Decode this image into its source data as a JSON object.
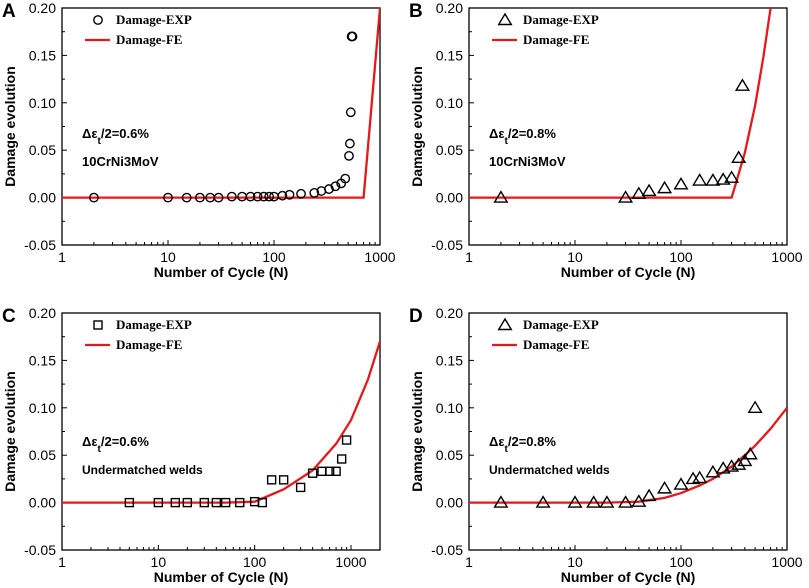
{
  "colors": {
    "fe_line": "#e31a1c",
    "markers": "#000000",
    "axis": "#000000"
  },
  "chart_data": [
    {
      "type": "scatter",
      "panel": "A",
      "title": "",
      "xlabel": "Number of Cycle (N)",
      "ylabel": "Damage evolution",
      "xscale": "log",
      "xlim": [
        1,
        1000
      ],
      "ylim": [
        -0.05,
        0.2
      ],
      "xticks": [
        1,
        10,
        100,
        1000
      ],
      "xtick_labels": [
        "1",
        "10",
        "100",
        "1000"
      ],
      "yticks": [
        -0.05,
        0,
        0.05,
        0.1,
        0.15,
        0.2
      ],
      "ytick_labels": [
        "-0.05",
        "0.00",
        "0.05",
        "0.10",
        "0.15",
        "0.20"
      ],
      "annotation": {
        "strain": "Δεt/2=0.6%",
        "material": "10CrNi3MoV"
      },
      "series": [
        {
          "name": "Damage-EXP",
          "marker": "circle",
          "x": [
            2,
            10,
            15,
            20,
            25,
            30,
            40,
            50,
            60,
            70,
            80,
            90,
            100,
            120,
            140,
            180,
            240,
            280,
            330,
            380,
            430,
            470,
            510,
            520,
            530,
            540,
            550
          ],
          "y": [
            0,
            0,
            0,
            0,
            0,
            0,
            0.001,
            0.001,
            0.001,
            0.001,
            0.001,
            0.001,
            0.001,
            0.002,
            0.003,
            0.004,
            0.005,
            0.007,
            0.009,
            0.012,
            0.015,
            0.02,
            0.044,
            0.057,
            0.09,
            0.17,
            0.17
          ]
        },
        {
          "name": "Damage-FE",
          "type": "line",
          "x": [
            1,
            700,
            1000
          ],
          "y": [
            0,
            0,
            0.2
          ]
        }
      ],
      "legend": "top-right"
    },
    {
      "type": "scatter",
      "panel": "B",
      "title": "",
      "xlabel": "Number of Cycle (N)",
      "ylabel": "Damage evolution",
      "xscale": "log",
      "xlim": [
        1,
        1000
      ],
      "ylim": [
        -0.05,
        0.2
      ],
      "xticks": [
        1,
        10,
        100,
        1000
      ],
      "xtick_labels": [
        "1",
        "10",
        "100",
        "1000"
      ],
      "yticks": [
        -0.05,
        0,
        0.05,
        0.1,
        0.15,
        0.2
      ],
      "ytick_labels": [
        "-0.05",
        "0.00",
        "0.05",
        "0.10",
        "0.15",
        "0.20"
      ],
      "annotation": {
        "strain": "Δεt/2=0.8%",
        "material": "10CrNi3MoV"
      },
      "series": [
        {
          "name": "Damage-EXP",
          "marker": "triangle",
          "x": [
            2,
            30,
            40,
            50,
            70,
            100,
            150,
            200,
            250,
            300,
            350,
            380
          ],
          "y": [
            0,
            0,
            0.004,
            0.007,
            0.01,
            0.014,
            0.018,
            0.018,
            0.019,
            0.021,
            0.042,
            0.118
          ]
        },
        {
          "name": "Damage-FE",
          "type": "line",
          "x": [
            1,
            300,
            320,
            400,
            500,
            600,
            700
          ],
          "y": [
            0,
            0,
            0.01,
            0.047,
            0.097,
            0.149,
            0.2
          ]
        }
      ],
      "legend": "top-right"
    },
    {
      "type": "scatter",
      "panel": "C",
      "title": "",
      "xlabel": "Number of Cycle (N)",
      "ylabel": "Damage evolution",
      "xscale": "log",
      "xlim": [
        1,
        2000
      ],
      "ylim": [
        -0.05,
        0.2
      ],
      "xticks": [
        1,
        10,
        100,
        1000
      ],
      "xtick_labels": [
        "1",
        "10",
        "100",
        "1000"
      ],
      "yticks": [
        -0.05,
        0,
        0.05,
        0.1,
        0.15,
        0.2
      ],
      "ytick_labels": [
        "-0.05",
        "0.00",
        "0.05",
        "0.10",
        "0.15",
        "0.20"
      ],
      "annotation": {
        "strain": "Δεt/2=0.6%",
        "material": "Undermatched welds"
      },
      "series": [
        {
          "name": "Damage-EXP",
          "marker": "square",
          "x": [
            5,
            10,
            15,
            20,
            30,
            40,
            50,
            70,
            100,
            120,
            150,
            200,
            300,
            400,
            500,
            600,
            700,
            800,
            900
          ],
          "y": [
            0,
            0,
            0,
            0,
            0,
            0,
            0,
            0,
            0.001,
            0,
            0.024,
            0.024,
            0.016,
            0.031,
            0.033,
            0.033,
            0.033,
            0.046,
            0.066
          ]
        },
        {
          "name": "Damage-FE",
          "type": "line",
          "x": [
            1,
            50,
            100,
            200,
            400,
            700,
            1000,
            1500,
            2000
          ],
          "y": [
            0,
            0,
            0.001,
            0.014,
            0.034,
            0.062,
            0.087,
            0.13,
            0.17
          ]
        }
      ],
      "legend": "top-right"
    },
    {
      "type": "scatter",
      "panel": "D",
      "title": "",
      "xlabel": "Number of Cycle (N)",
      "ylabel": "Damage evolution",
      "xscale": "log",
      "xlim": [
        1,
        1000
      ],
      "ylim": [
        -0.05,
        0.2
      ],
      "xticks": [
        1,
        10,
        100,
        1000
      ],
      "xtick_labels": [
        "1",
        "10",
        "100",
        "1000"
      ],
      "yticks": [
        -0.05,
        0,
        0.05,
        0.1,
        0.15,
        0.2
      ],
      "ytick_labels": [
        "-0.05",
        "0.00",
        "0.05",
        "0.10",
        "0.15",
        "0.20"
      ],
      "annotation": {
        "strain": "Δεt/2=0.8%",
        "material": "Undermatched welds"
      },
      "series": [
        {
          "name": "Damage-EXP",
          "marker": "triangle",
          "x": [
            2,
            5,
            10,
            15,
            20,
            30,
            40,
            50,
            70,
            100,
            130,
            150,
            200,
            250,
            300,
            350,
            400,
            450,
            500
          ],
          "y": [
            0,
            0,
            0,
            0,
            0,
            0,
            0.001,
            0.007,
            0.015,
            0.019,
            0.025,
            0.026,
            0.032,
            0.036,
            0.038,
            0.04,
            0.044,
            0.051,
            0.1
          ]
        },
        {
          "name": "Damage-FE",
          "type": "line",
          "x": [
            1,
            20,
            40,
            70,
            100,
            150,
            200,
            300,
            400,
            500,
            700,
            1000
          ],
          "y": [
            0,
            0,
            0.001,
            0.005,
            0.01,
            0.018,
            0.025,
            0.038,
            0.05,
            0.06,
            0.078,
            0.1
          ]
        }
      ],
      "legend": "top-right"
    }
  ]
}
